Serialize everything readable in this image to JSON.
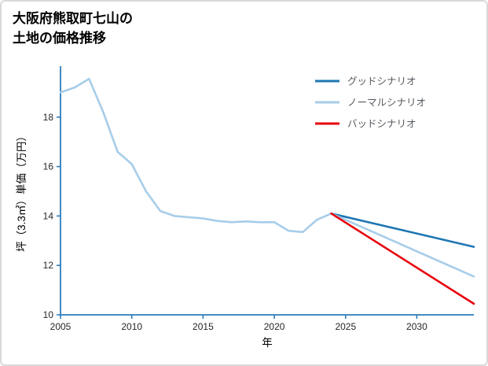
{
  "title": {
    "line1": "大阪府熊取町七山の",
    "line2": "土地の価格推移"
  },
  "chart_data": {
    "type": "line",
    "title": "大阪府熊取町七山の土地の価格推移",
    "xlabel": "年",
    "ylabel": "坪（3.3㎡）単価（万円）",
    "xlim": [
      2005,
      2034
    ],
    "ylim": [
      10,
      20
    ],
    "x_ticks": [
      2005,
      2010,
      2015,
      2020,
      2025,
      2030
    ],
    "y_ticks": [
      10,
      12,
      14,
      16,
      18
    ],
    "grid": false,
    "legend_position": "upper right",
    "axis_color": "#2B7BBA",
    "tick_label_color": "#262626",
    "series": [
      {
        "name": "price-history",
        "color": "#A7CDE9",
        "width": 2.6,
        "x": [
          2005,
          2006,
          2007,
          2008,
          2009,
          2010,
          2011,
          2012,
          2013,
          2014,
          2015,
          2016,
          2017,
          2018,
          2019,
          2020,
          2021,
          2022,
          2023,
          2024
        ],
        "y": [
          19.0,
          19.2,
          19.55,
          18.2,
          16.6,
          16.1,
          15.0,
          14.2,
          14.0,
          13.95,
          13.9,
          13.8,
          13.75,
          13.78,
          13.75,
          13.75,
          13.4,
          13.35,
          13.85,
          14.1
        ]
      },
      {
        "name": "good-scenario",
        "label": "グッドシナリオ",
        "color": "#1F77B4",
        "width": 2.6,
        "x": [
          2024,
          2034
        ],
        "y": [
          14.1,
          12.75
        ]
      },
      {
        "name": "normal-scenario",
        "label": "ノーマルシナリオ",
        "color": "#A7CDE9",
        "width": 2.6,
        "x": [
          2024,
          2034
        ],
        "y": [
          14.1,
          11.55
        ]
      },
      {
        "name": "bad-scenario",
        "label": "バッドシナリオ",
        "color": "#E8000B",
        "width": 2.6,
        "x": [
          2024,
          2034
        ],
        "y": [
          14.1,
          10.45
        ]
      }
    ],
    "legend": [
      {
        "label": "グッドシナリオ",
        "color": "#1F77B4"
      },
      {
        "label": "ノーマルシナリオ",
        "color": "#A7CDE9"
      },
      {
        "label": "バッドシナリオ",
        "color": "#E8000B"
      }
    ]
  }
}
